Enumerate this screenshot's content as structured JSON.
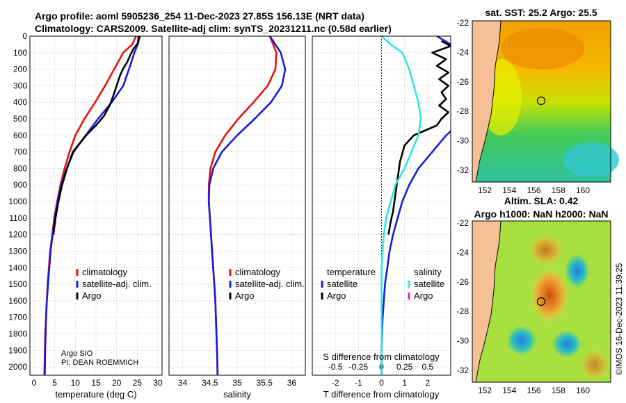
{
  "header": {
    "line1": "Argo profile: aoml 5905236_254 11-Dec-2023 27.85S 156.13E (NRT data)",
    "line2": "Climatology: CARS2009. Satellite-adj clim: synTS_20231211.nc (0.58d earlier)"
  },
  "depth_axis": {
    "ylim": [
      0,
      2050
    ],
    "ticks": [
      0,
      100,
      200,
      300,
      400,
      500,
      600,
      700,
      800,
      900,
      1000,
      1100,
      1200,
      1300,
      1400,
      1500,
      1600,
      1700,
      1800,
      1900,
      2000
    ]
  },
  "legend": {
    "climatology": "climatology",
    "satellite": "satellite-adj. clim.",
    "argo": "Argo",
    "temperature": "temperature",
    "salinity": "salinity",
    "satellite_short": "satellite",
    "argo_short": "Argo"
  },
  "credits": {
    "institution": "Argo SIO",
    "pi": "PI: DEAN ROEMMICH"
  },
  "colors": {
    "clim": "#e8100d",
    "sat": "#1a1adc",
    "argo": "#000000",
    "sal_sat": "#2ee6e6",
    "sal_argo": "#e020e0"
  },
  "chart_data": [
    {
      "type": "line",
      "name": "temperature",
      "xlabel": "temperature (deg C)",
      "xlim": [
        -1,
        31
      ],
      "xticks": [
        0,
        5,
        10,
        15,
        20,
        25,
        30
      ],
      "series": [
        {
          "name": "climatology",
          "x": [
            24.7,
            23.8,
            21.6,
            19.4,
            17.2,
            14.8,
            12.2,
            10.0,
            8.6,
            7.4,
            6.4,
            5.6,
            4.9,
            4.4,
            3.9,
            3.6,
            3.3,
            3.1,
            2.9,
            2.7,
            2.6,
            2.5
          ],
          "y": [
            0,
            50,
            100,
            200,
            300,
            400,
            500,
            600,
            700,
            800,
            900,
            1000,
            1100,
            1200,
            1300,
            1400,
            1500,
            1600,
            1700,
            1800,
            1900,
            2050
          ]
        },
        {
          "name": "satellite-adj. clim.",
          "x": [
            25.3,
            25.1,
            24.3,
            23.0,
            21.6,
            18.8,
            15.5,
            12.5,
            9.6,
            7.9,
            6.6,
            5.7,
            5.0,
            4.5,
            4.0,
            3.7,
            3.4,
            3.1,
            2.9,
            2.8,
            2.7,
            2.6
          ],
          "y": [
            0,
            50,
            100,
            200,
            300,
            400,
            500,
            600,
            700,
            800,
            900,
            1000,
            1100,
            1200,
            1300,
            1400,
            1500,
            1600,
            1700,
            1800,
            1900,
            2050
          ]
        },
        {
          "name": "Argo",
          "x": [
            25.6,
            25.2,
            24.0,
            23.2,
            22.5,
            21.5,
            20.8,
            20.0,
            19.2,
            18.3,
            17.0,
            15.0,
            12.6,
            11.0,
            9.4,
            8.0,
            6.8,
            5.9,
            5.2,
            4.7
          ],
          "y": [
            0,
            40,
            80,
            120,
            160,
            200,
            240,
            300,
            360,
            420,
            480,
            540,
            600,
            650,
            700,
            800,
            900,
            1000,
            1100,
            1200
          ]
        }
      ]
    },
    {
      "type": "line",
      "name": "salinity",
      "xlabel": "salinity",
      "xlim": [
        33.75,
        36.25
      ],
      "xticks": [
        34,
        34.5,
        35,
        35.5,
        36
      ],
      "series": [
        {
          "name": "climatology",
          "x": [
            35.6,
            35.66,
            35.72,
            35.7,
            35.56,
            35.3,
            35.02,
            34.78,
            34.6,
            34.51,
            34.48,
            34.48,
            34.5,
            34.52,
            34.54,
            34.56,
            34.58,
            34.6,
            34.61,
            34.62,
            34.63,
            34.64
          ],
          "y": [
            0,
            50,
            100,
            200,
            300,
            400,
            500,
            600,
            700,
            800,
            900,
            1000,
            1100,
            1200,
            1300,
            1400,
            1500,
            1600,
            1700,
            1800,
            1900,
            2050
          ]
        },
        {
          "name": "satellite-adj. clim.",
          "x": [
            35.6,
            35.7,
            35.8,
            35.88,
            35.82,
            35.62,
            35.32,
            35.0,
            34.72,
            34.56,
            34.49,
            34.48,
            34.5,
            34.52,
            34.54,
            34.56,
            34.58,
            34.6,
            34.61,
            34.62,
            34.63,
            34.64
          ],
          "y": [
            0,
            50,
            100,
            200,
            300,
            400,
            500,
            600,
            700,
            800,
            900,
            1000,
            1100,
            1200,
            1300,
            1400,
            1500,
            1600,
            1700,
            1800,
            1900,
            2050
          ]
        }
      ]
    },
    {
      "type": "line",
      "name": "differences",
      "xlabel": "T difference from climatology",
      "xlabel_top": "S difference from climatology",
      "xlim": [
        -3,
        3
      ],
      "xticks": [
        -2,
        -1,
        0,
        1,
        2
      ],
      "top_ticks": [
        "-0.5",
        "-0.25",
        "0",
        "0.25",
        "0.5"
      ],
      "top_tick_x": [
        -2,
        -1,
        0,
        1,
        2
      ],
      "series": [
        {
          "name": "temperature satellite",
          "x": [
            2.4,
            3.0,
            3.2,
            3.6,
            4.0,
            4.4,
            3.6,
            2.8,
            2.2,
            1.6,
            1.2,
            0.9,
            0.7,
            0.5,
            0.35,
            0.25,
            0.15,
            0.1,
            0.05,
            0.02,
            0.0,
            0.0
          ],
          "y": [
            0,
            50,
            100,
            200,
            300,
            400,
            500,
            600,
            700,
            800,
            900,
            1000,
            1100,
            1200,
            1300,
            1400,
            1500,
            1600,
            1700,
            1800,
            1900,
            2050
          ]
        },
        {
          "name": "temperature Argo",
          "x": [
            2.6,
            3.0,
            2.2,
            2.8,
            2.4,
            2.9,
            2.5,
            2.9,
            2.6,
            2.8,
            2.5,
            2.9,
            2.6,
            2.4,
            1.4,
            1.0,
            0.8,
            0.7,
            0.6,
            0.5,
            0.4,
            0.3
          ],
          "y": [
            30,
            60,
            100,
            140,
            180,
            220,
            260,
            300,
            340,
            380,
            420,
            460,
            500,
            540,
            600,
            660,
            760,
            860,
            960,
            1060,
            1120,
            1200
          ]
        },
        {
          "name": "salinity satellite",
          "x": [
            0.0,
            0.4,
            0.9,
            1.2,
            1.4,
            1.6,
            1.7,
            1.6,
            1.3,
            1.0,
            0.6,
            0.4,
            0.2,
            0.1,
            0.05,
            0.0,
            0.0,
            0.0,
            0.0,
            0.0,
            0.0,
            0.0
          ],
          "y": [
            0,
            50,
            100,
            200,
            300,
            400,
            500,
            600,
            700,
            800,
            900,
            1000,
            1100,
            1200,
            1300,
            1400,
            1500,
            1600,
            1700,
            1800,
            1900,
            2050
          ]
        }
      ]
    }
  ],
  "maps": [
    {
      "title": "sat. SST: 25.2 Argo: 25.5",
      "lat_ticks": [
        "-22",
        "-24",
        "-26",
        "-28",
        "-30",
        "-32"
      ],
      "lon_ticks": [
        "152",
        "154",
        "156",
        "158",
        "160"
      ]
    },
    {
      "title_line1": "Altim. SLA: 0.42",
      "title_line2": "Argo h1000: NaN h2000: NaN",
      "lat_ticks": [
        "-22",
        "-24",
        "-26",
        "-28",
        "-30",
        "-32"
      ],
      "lon_ticks": [
        "152",
        "154",
        "156",
        "158",
        "160"
      ]
    }
  ],
  "timestamp": "©IMOS 16-Dec-2023 11:39:25"
}
